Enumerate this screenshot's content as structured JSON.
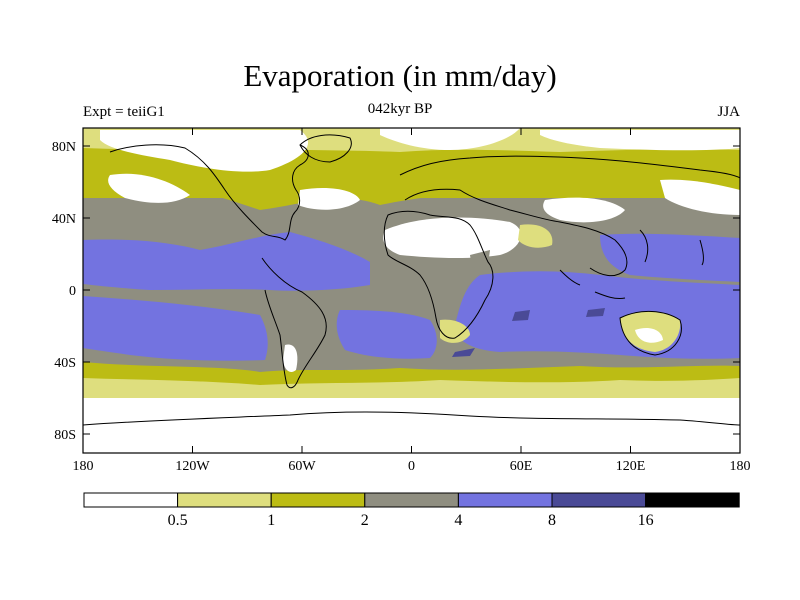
{
  "header": {
    "title": "Evaporation (in mm/day)",
    "subtitle": "042kyr BP",
    "left_label": "Expt = teiiG1",
    "right_label": "JJA"
  },
  "axes": {
    "lon_ticks": [
      "180",
      "120W",
      "60W",
      "0",
      "60E",
      "120E",
      "180"
    ],
    "lat_ticks": [
      "80N",
      "40N",
      "0",
      "40S",
      "80S"
    ]
  },
  "colorbar": {
    "levels": [
      "0.5",
      "1",
      "2",
      "4",
      "8",
      "16"
    ],
    "colors": [
      "#ffffff",
      "#dede7e",
      "#bcbc14",
      "#8f8e80",
      "#7373e0",
      "#4a4a96",
      "#000000"
    ]
  },
  "map": {
    "projection": "cylindrical equidistant",
    "lon_range": [
      -180,
      180
    ],
    "lat_range": [
      -90,
      90
    ],
    "field_colors": {
      "lt_0_5": "#ffffff",
      "0_5_to_1": "#dede7e",
      "1_to_2": "#bcbc14",
      "2_to_4": "#8f8e80",
      "4_to_8": "#7373e0",
      "8_to_16": "#4a4a96"
    }
  }
}
